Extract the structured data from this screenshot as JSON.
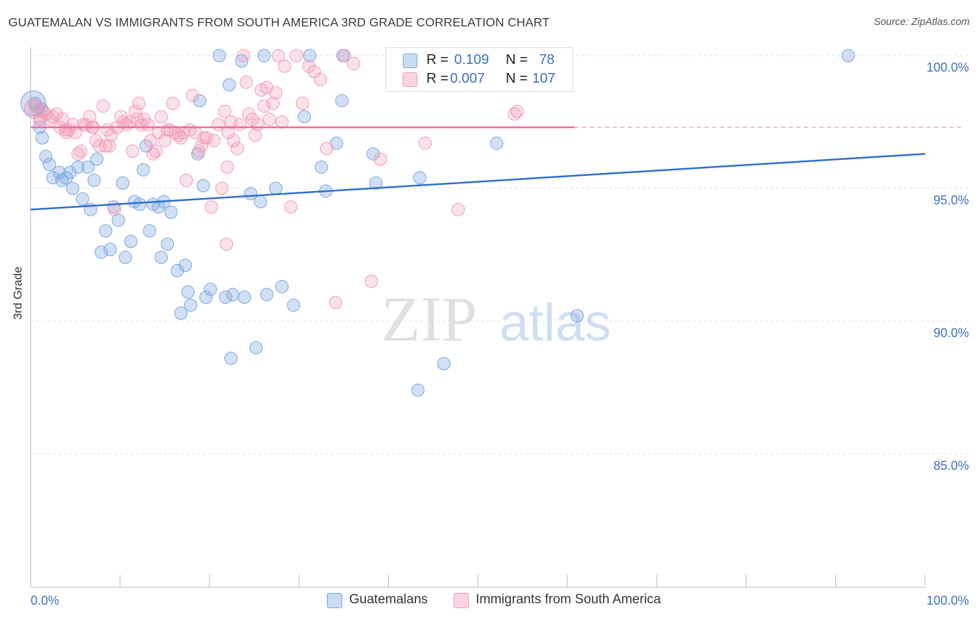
{
  "title": "GUATEMALAN VS IMMIGRANTS FROM SOUTH AMERICA 3RD GRADE CORRELATION CHART",
  "source": "Source: ZipAtlas.com",
  "watermark": {
    "zip": "ZIP",
    "atlas": "atlas"
  },
  "legend": {
    "blue": {
      "r_label": "R =",
      "r_value": "0.109",
      "n_label": "N =",
      "n_value": "78"
    },
    "pink": {
      "r_label": "R =",
      "r_value": "0.007",
      "n_label": "N =",
      "n_value": "107"
    }
  },
  "colors": {
    "blue": "#7aa7e0",
    "blue_line": "#2f6fcf",
    "pink": "#f29bb8",
    "pink_line": "#ef6b94",
    "axis_text": "#3d72c4"
  },
  "chart_data": {
    "type": "scatter",
    "title": "GUATEMALAN VS IMMIGRANTS FROM SOUTH AMERICA 3RD GRADE CORRELATION CHART",
    "xlabel": "",
    "ylabel": "3rd Grade",
    "xlim": [
      0,
      100
    ],
    "ylim": [
      80.5,
      100.8
    ],
    "x_tick_labels": [
      "0.0%",
      "100.0%"
    ],
    "y_ticks": [
      85,
      90,
      95,
      100
    ],
    "y_tick_labels": [
      "85.0%",
      "90.0%",
      "95.0%",
      "100.0%"
    ],
    "grid": true,
    "legend_position": "bottom-center",
    "series": [
      {
        "name": "Guatemalans",
        "color": "#7aa7e0",
        "trend": {
          "x": [
            0,
            100
          ],
          "y": [
            94.2,
            96.3
          ]
        },
        "points": [
          [
            0.5,
            98.2
          ],
          [
            1.0,
            97.3
          ],
          [
            1.3,
            96.9
          ],
          [
            1.7,
            96.2
          ],
          [
            2.1,
            95.9
          ],
          [
            2.5,
            95.4
          ],
          [
            3.2,
            95.6
          ],
          [
            3.5,
            95.3
          ],
          [
            4.0,
            95.4
          ],
          [
            4.4,
            95.6
          ],
          [
            4.7,
            95.0
          ],
          [
            5.3,
            95.8
          ],
          [
            5.8,
            94.6
          ],
          [
            6.4,
            95.8
          ],
          [
            6.7,
            94.2
          ],
          [
            7.1,
            95.3
          ],
          [
            7.4,
            96.1
          ],
          [
            7.9,
            92.6
          ],
          [
            8.4,
            93.4
          ],
          [
            8.9,
            92.7
          ],
          [
            9.3,
            94.3
          ],
          [
            9.8,
            93.8
          ],
          [
            10.3,
            95.2
          ],
          [
            10.6,
            92.4
          ],
          [
            11.2,
            93.0
          ],
          [
            11.6,
            94.5
          ],
          [
            12.2,
            94.4
          ],
          [
            12.6,
            95.7
          ],
          [
            12.9,
            96.6
          ],
          [
            13.3,
            93.4
          ],
          [
            13.7,
            94.4
          ],
          [
            14.3,
            94.3
          ],
          [
            14.6,
            92.4
          ],
          [
            14.9,
            94.5
          ],
          [
            15.3,
            92.9
          ],
          [
            15.7,
            94.1
          ],
          [
            16.4,
            91.9
          ],
          [
            16.8,
            90.3
          ],
          [
            17.3,
            92.1
          ],
          [
            17.6,
            91.1
          ],
          [
            17.9,
            90.6
          ],
          [
            18.7,
            96.3
          ],
          [
            18.9,
            98.3
          ],
          [
            19.3,
            95.1
          ],
          [
            19.6,
            90.9
          ],
          [
            20.1,
            91.2
          ],
          [
            21.1,
            100.0
          ],
          [
            21.8,
            90.9
          ],
          [
            22.2,
            98.9
          ],
          [
            22.4,
            88.6
          ],
          [
            22.6,
            91.0
          ],
          [
            23.6,
            99.8
          ],
          [
            23.9,
            90.9
          ],
          [
            24.6,
            94.8
          ],
          [
            25.2,
            89.0
          ],
          [
            25.7,
            94.5
          ],
          [
            26.1,
            100.0
          ],
          [
            26.4,
            91.0
          ],
          [
            27.4,
            95.0
          ],
          [
            28.1,
            91.3
          ],
          [
            29.4,
            90.6
          ],
          [
            30.6,
            97.7
          ],
          [
            31.2,
            100.0
          ],
          [
            32.5,
            95.8
          ],
          [
            33.0,
            94.9
          ],
          [
            34.2,
            96.7
          ],
          [
            34.8,
            98.3
          ],
          [
            34.9,
            100.0
          ],
          [
            38.3,
            96.3
          ],
          [
            38.6,
            95.2
          ],
          [
            43.3,
            87.4
          ],
          [
            43.5,
            95.4
          ],
          [
            46.2,
            88.4
          ],
          [
            52.1,
            96.7
          ],
          [
            59.9,
            100.0
          ],
          [
            61.1,
            90.2
          ],
          [
            91.4,
            100.0
          ],
          [
            1.2,
            98.0
          ]
        ]
      },
      {
        "name": "Immigrants from South America",
        "color": "#f29bb8",
        "trend": {
          "x": [
            0,
            60.8
          ],
          "y": [
            97.3,
            97.3
          ]
        },
        "points": [
          [
            0.6,
            98.1
          ],
          [
            0.9,
            97.9
          ],
          [
            1.1,
            97.6
          ],
          [
            1.4,
            97.9
          ],
          [
            1.7,
            97.8
          ],
          [
            2.1,
            97.6
          ],
          [
            2.5,
            97.7
          ],
          [
            2.9,
            97.8
          ],
          [
            3.3,
            97.3
          ],
          [
            3.6,
            97.6
          ],
          [
            4.0,
            97.1
          ],
          [
            4.3,
            97.2
          ],
          [
            4.7,
            97.4
          ],
          [
            5.0,
            97.1
          ],
          [
            5.3,
            96.3
          ],
          [
            5.6,
            96.4
          ],
          [
            5.9,
            97.4
          ],
          [
            6.2,
            97.4
          ],
          [
            6.6,
            97.7
          ],
          [
            7.0,
            97.3
          ],
          [
            7.3,
            96.8
          ],
          [
            7.7,
            96.6
          ],
          [
            8.1,
            98.1
          ],
          [
            8.4,
            96.6
          ],
          [
            8.6,
            97.2
          ],
          [
            9.0,
            97.0
          ],
          [
            9.4,
            94.2
          ],
          [
            9.7,
            97.3
          ],
          [
            10.1,
            97.7
          ],
          [
            10.4,
            97.5
          ],
          [
            10.7,
            97.4
          ],
          [
            11.1,
            97.5
          ],
          [
            11.4,
            96.4
          ],
          [
            11.7,
            97.9
          ],
          [
            12.1,
            98.2
          ],
          [
            12.4,
            97.4
          ],
          [
            12.7,
            97.6
          ],
          [
            13.1,
            97.4
          ],
          [
            13.4,
            96.8
          ],
          [
            13.7,
            96.3
          ],
          [
            14.0,
            96.4
          ],
          [
            14.3,
            97.1
          ],
          [
            14.6,
            97.7
          ],
          [
            15.0,
            96.8
          ],
          [
            15.3,
            97.2
          ],
          [
            15.6,
            97.2
          ],
          [
            15.9,
            98.2
          ],
          [
            16.2,
            97.1
          ],
          [
            16.5,
            97.0
          ],
          [
            16.8,
            96.9
          ],
          [
            17.1,
            97.1
          ],
          [
            17.4,
            95.3
          ],
          [
            17.8,
            97.2
          ],
          [
            18.1,
            98.5
          ],
          [
            18.4,
            97.1
          ],
          [
            18.8,
            96.4
          ],
          [
            19.1,
            96.6
          ],
          [
            19.4,
            96.9
          ],
          [
            19.7,
            96.9
          ],
          [
            20.2,
            94.3
          ],
          [
            20.5,
            96.8
          ],
          [
            21.0,
            97.4
          ],
          [
            21.4,
            95.0
          ],
          [
            21.7,
            97.9
          ],
          [
            22.1,
            97.1
          ],
          [
            22.4,
            97.5
          ],
          [
            22.7,
            96.8
          ],
          [
            23.1,
            96.5
          ],
          [
            23.4,
            97.4
          ],
          [
            23.8,
            100.0
          ],
          [
            24.1,
            99.0
          ],
          [
            24.4,
            97.8
          ],
          [
            24.8,
            97.6
          ],
          [
            25.1,
            97.0
          ],
          [
            25.4,
            97.4
          ],
          [
            25.8,
            98.7
          ],
          [
            26.1,
            98.1
          ],
          [
            26.4,
            98.8
          ],
          [
            26.7,
            97.6
          ],
          [
            27.1,
            98.2
          ],
          [
            27.4,
            98.6
          ],
          [
            27.7,
            100.0
          ],
          [
            28.1,
            97.5
          ],
          [
            28.4,
            99.6
          ],
          [
            29.1,
            94.3
          ],
          [
            29.7,
            100.0
          ],
          [
            30.4,
            98.2
          ],
          [
            31.1,
            99.6
          ],
          [
            31.7,
            99.4
          ],
          [
            32.4,
            99.1
          ],
          [
            33.1,
            96.5
          ],
          [
            34.1,
            90.7
          ],
          [
            35.1,
            100.0
          ],
          [
            36.1,
            99.7
          ],
          [
            38.1,
            91.5
          ],
          [
            39.1,
            96.1
          ],
          [
            44.1,
            96.7
          ],
          [
            47.8,
            94.2
          ],
          [
            54.1,
            97.8
          ],
          [
            54.4,
            97.9
          ],
          [
            1.0,
            97.6
          ],
          [
            3.9,
            97.2
          ],
          [
            6.9,
            97.3
          ],
          [
            8.8,
            96.6
          ],
          [
            11.9,
            97.6
          ],
          [
            22.0,
            95.8
          ],
          [
            21.9,
            92.9
          ]
        ]
      }
    ]
  }
}
